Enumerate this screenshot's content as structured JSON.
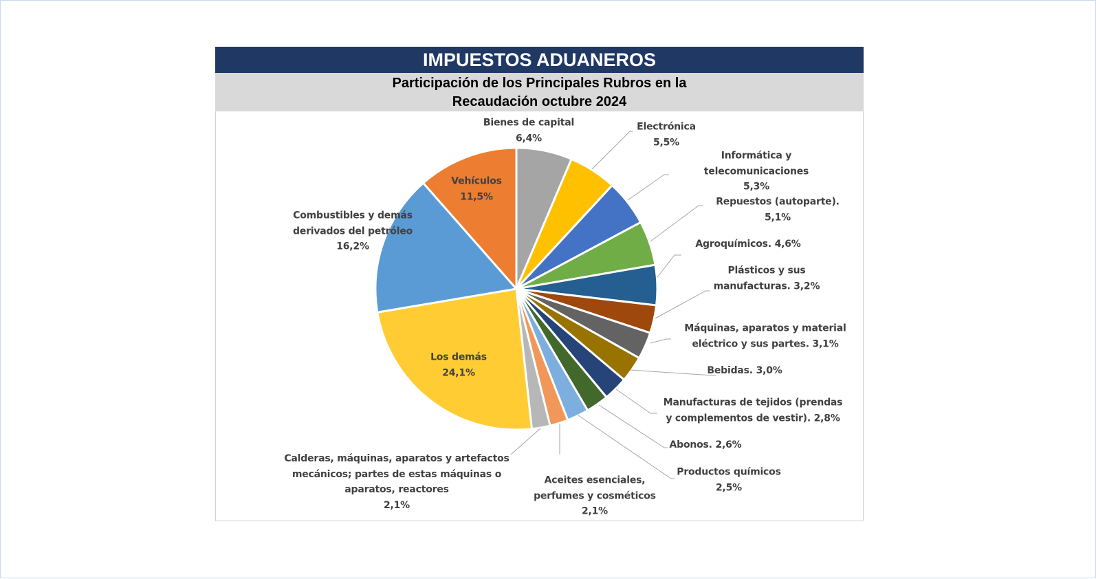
{
  "header": {
    "title": "IMPUESTOS ADUANEROS"
  },
  "chart_data": {
    "type": "pie",
    "title_lines": [
      "Participación de los Principales Rubros en la",
      "Recaudación octubre 2024"
    ],
    "start": "12 o'clock, clockwise",
    "slices": [
      {
        "label_lines": [
          "Bienes de capital",
          "6,4%"
        ],
        "value": 6.4,
        "color": "#a5a5a5"
      },
      {
        "label_lines": [
          "Electrónica",
          "5,5%"
        ],
        "value": 5.5,
        "color": "#ffc000"
      },
      {
        "label_lines": [
          "Informática y",
          "telecomunicaciones",
          "5,3%"
        ],
        "value": 5.3,
        "color": "#4472c4"
      },
      {
        "label_lines": [
          "Repuestos (autoparte).",
          "5,1%"
        ],
        "value": 5.1,
        "color": "#70ad47"
      },
      {
        "label_lines": [
          "Agroquímicos. 4,6%"
        ],
        "value": 4.6,
        "color": "#255e91"
      },
      {
        "label_lines": [
          "Plásticos y sus",
          "manufacturas. 3,2%"
        ],
        "value": 3.2,
        "color": "#9e480e"
      },
      {
        "label_lines": [
          "Máquinas, aparatos y material",
          "eléctrico y sus partes. 3,1%"
        ],
        "value": 3.1,
        "color": "#636363"
      },
      {
        "label_lines": [
          "Bebidas. 3,0%"
        ],
        "value": 3.0,
        "color": "#997300"
      },
      {
        "label_lines": [
          "Manufacturas de tejidos (prendas",
          "y complementos de vestir). 2,8%"
        ],
        "value": 2.8,
        "color": "#264478"
      },
      {
        "label_lines": [
          "Abonos. 2,6%"
        ],
        "value": 2.6,
        "color": "#43682b"
      },
      {
        "label_lines": [
          "Productos químicos",
          "2,5%"
        ],
        "value": 2.5,
        "color": "#7cafdd"
      },
      {
        "label_lines": [
          "Aceites esenciales,",
          "perfumes y cosméticos",
          "2,1%"
        ],
        "value": 2.1,
        "color": "#f1975a"
      },
      {
        "label_lines": [
          "Calderas, máquinas, aparatos y artefactos",
          "mecánicos; partes de estas máquinas o",
          "aparatos, reactores",
          "2,1%"
        ],
        "value": 2.1,
        "color": "#b7b7b7"
      },
      {
        "label_lines": [
          "Los demás",
          "24,1%"
        ],
        "value": 24.1,
        "color": "#ffcd33"
      },
      {
        "label_lines": [
          "Combustibles y demás",
          "derivados del petróleo",
          "16,2%"
        ],
        "value": 16.2,
        "color": "#5b9bd5"
      },
      {
        "label_lines": [
          "Vehículos",
          "11,5%"
        ],
        "value": 11.5,
        "color": "#ed7d31"
      }
    ]
  }
}
